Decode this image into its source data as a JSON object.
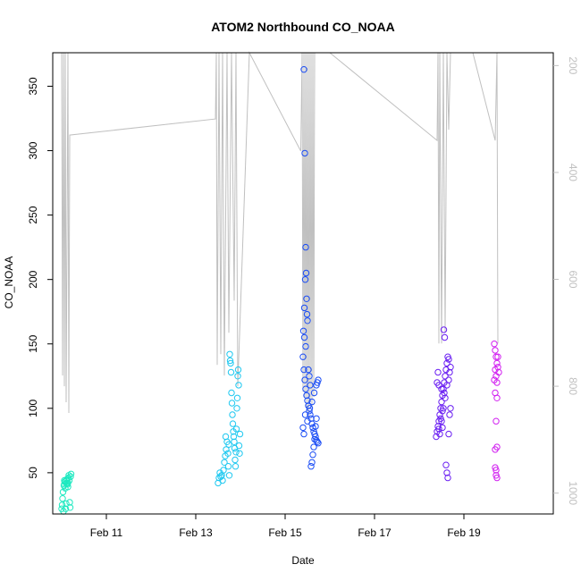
{
  "chart_data": {
    "type": "scatter",
    "title": "ATOM2 Northbound CO_NOAA",
    "xlabel": "Date",
    "ylabel": "CO_NOAA",
    "xlim_days": [
      9.8,
      21.0
    ],
    "ylim": [
      18,
      376
    ],
    "x_ticks": [
      {
        "label": "Feb 11",
        "value": 11
      },
      {
        "label": "Feb 13",
        "value": 13
      },
      {
        "label": "Feb 15",
        "value": 15
      },
      {
        "label": "Feb 17",
        "value": 17
      },
      {
        "label": "Feb 19",
        "value": 19
      }
    ],
    "y_ticks": [
      50,
      100,
      150,
      200,
      250,
      300,
      350
    ],
    "right_axis": {
      "ylim": [
        1039,
        176
      ],
      "ticks": [
        200,
        400,
        600,
        800,
        1000
      ],
      "color": "#c0c0c0"
    },
    "grid": false,
    "marker": "open-circle",
    "series": [
      {
        "color": "#1de9c0",
        "points": [
          [
            10.0,
            22
          ],
          [
            10.01,
            25
          ],
          [
            10.02,
            30
          ],
          [
            10.03,
            35
          ],
          [
            10.04,
            20
          ],
          [
            10.05,
            40
          ],
          [
            10.06,
            44
          ],
          [
            10.07,
            43
          ],
          [
            10.08,
            38
          ],
          [
            10.09,
            22
          ],
          [
            10.1,
            26
          ],
          [
            10.11,
            42
          ],
          [
            10.12,
            45
          ],
          [
            10.13,
            41
          ],
          [
            10.14,
            39
          ],
          [
            10.15,
            46
          ],
          [
            10.16,
            48
          ],
          [
            10.17,
            44
          ],
          [
            10.18,
            27
          ],
          [
            10.19,
            23
          ],
          [
            10.2,
            47
          ],
          [
            10.21,
            49
          ],
          [
            10.06,
            41
          ],
          [
            10.1,
            44
          ],
          [
            10.14,
            42
          ]
        ]
      },
      {
        "color": "#1ec8f0",
        "points": [
          [
            13.5,
            42
          ],
          [
            13.52,
            46
          ],
          [
            13.54,
            50
          ],
          [
            13.56,
            47
          ],
          [
            13.58,
            48
          ],
          [
            13.6,
            44
          ],
          [
            13.62,
            52
          ],
          [
            13.64,
            58
          ],
          [
            13.66,
            63
          ],
          [
            13.68,
            68
          ],
          [
            13.7,
            74
          ],
          [
            13.72,
            65
          ],
          [
            13.74,
            72
          ],
          [
            13.76,
            142
          ],
          [
            13.77,
            137
          ],
          [
            13.78,
            135
          ],
          [
            13.79,
            128
          ],
          [
            13.8,
            112
          ],
          [
            13.81,
            104
          ],
          [
            13.82,
            95
          ],
          [
            13.83,
            88
          ],
          [
            13.84,
            82
          ],
          [
            13.85,
            78
          ],
          [
            13.86,
            74
          ],
          [
            13.87,
            69
          ],
          [
            13.88,
            60
          ],
          [
            13.89,
            55
          ],
          [
            13.9,
            66
          ],
          [
            13.91,
            84
          ],
          [
            13.92,
            100
          ],
          [
            13.93,
            108
          ],
          [
            13.94,
            125
          ],
          [
            13.95,
            130
          ],
          [
            13.96,
            118
          ],
          [
            13.97,
            71
          ],
          [
            13.98,
            65
          ],
          [
            13.99,
            80
          ],
          [
            13.73,
            55
          ],
          [
            13.75,
            48
          ],
          [
            13.67,
            78
          ]
        ]
      },
      {
        "color": "#1a4cf5",
        "points": [
          [
            15.42,
            363
          ],
          [
            15.44,
            298
          ],
          [
            15.46,
            225
          ],
          [
            15.47,
            205
          ],
          [
            15.45,
            200
          ],
          [
            15.43,
            178
          ],
          [
            15.48,
            185
          ],
          [
            15.49,
            173
          ],
          [
            15.5,
            168
          ],
          [
            15.41,
            160
          ],
          [
            15.43,
            155
          ],
          [
            15.46,
            148
          ],
          [
            15.4,
            140
          ],
          [
            15.42,
            130
          ],
          [
            15.44,
            122
          ],
          [
            15.46,
            115
          ],
          [
            15.48,
            110
          ],
          [
            15.5,
            106
          ],
          [
            15.52,
            102
          ],
          [
            15.54,
            98
          ],
          [
            15.56,
            95
          ],
          [
            15.58,
            92
          ],
          [
            15.6,
            88
          ],
          [
            15.62,
            85
          ],
          [
            15.64,
            82
          ],
          [
            15.66,
            80
          ],
          [
            15.68,
            78
          ],
          [
            15.7,
            75
          ],
          [
            15.72,
            74
          ],
          [
            15.74,
            73
          ],
          [
            15.4,
            85
          ],
          [
            15.42,
            80
          ],
          [
            15.45,
            95
          ],
          [
            15.5,
            90
          ],
          [
            15.55,
            100
          ],
          [
            15.6,
            105
          ],
          [
            15.65,
            112
          ],
          [
            15.7,
            118
          ],
          [
            15.72,
            120
          ],
          [
            15.74,
            122
          ],
          [
            15.58,
            55
          ],
          [
            15.6,
            58
          ],
          [
            15.62,
            64
          ],
          [
            15.64,
            70
          ],
          [
            15.66,
            76
          ],
          [
            15.68,
            86
          ],
          [
            15.7,
            92
          ],
          [
            15.52,
            130
          ],
          [
            15.54,
            125
          ],
          [
            15.56,
            118
          ]
        ]
      },
      {
        "color": "#6a1ef2",
        "points": [
          [
            18.38,
            78
          ],
          [
            18.4,
            82
          ],
          [
            18.42,
            86
          ],
          [
            18.44,
            90
          ],
          [
            18.46,
            95
          ],
          [
            18.48,
            100
          ],
          [
            18.5,
            105
          ],
          [
            18.52,
            110
          ],
          [
            18.54,
            115
          ],
          [
            18.56,
            120
          ],
          [
            18.58,
            125
          ],
          [
            18.6,
            130
          ],
          [
            18.62,
            135
          ],
          [
            18.64,
            140
          ],
          [
            18.66,
            138
          ],
          [
            18.55,
            161
          ],
          [
            18.57,
            155
          ],
          [
            18.6,
            56
          ],
          [
            18.62,
            50
          ],
          [
            18.64,
            46
          ],
          [
            18.66,
            80
          ],
          [
            18.68,
            95
          ],
          [
            18.7,
            100
          ],
          [
            18.4,
            120
          ],
          [
            18.42,
            128
          ],
          [
            18.44,
            118
          ],
          [
            18.5,
            90
          ],
          [
            18.52,
            85
          ],
          [
            18.54,
            100
          ],
          [
            18.56,
            112
          ],
          [
            18.58,
            108
          ],
          [
            18.62,
            118
          ],
          [
            18.66,
            122
          ],
          [
            18.68,
            128
          ],
          [
            18.7,
            132
          ],
          [
            18.44,
            84
          ],
          [
            18.46,
            80
          ],
          [
            18.48,
            92
          ],
          [
            18.5,
            115
          ],
          [
            18.52,
            98
          ]
        ]
      },
      {
        "color": "#d11ef0",
        "points": [
          [
            19.68,
            150
          ],
          [
            19.7,
            145
          ],
          [
            19.72,
            140
          ],
          [
            19.74,
            135
          ],
          [
            19.7,
            130
          ],
          [
            19.72,
            125
          ],
          [
            19.74,
            120
          ],
          [
            19.7,
            112
          ],
          [
            19.72,
            90
          ],
          [
            19.74,
            70
          ],
          [
            19.7,
            54
          ],
          [
            19.72,
            48
          ],
          [
            19.74,
            46
          ],
          [
            19.76,
            140
          ],
          [
            19.78,
            128
          ],
          [
            19.68,
            122
          ],
          [
            19.7,
            68
          ],
          [
            19.72,
            52
          ],
          [
            19.76,
            132
          ],
          [
            19.74,
            108
          ]
        ]
      }
    ],
    "altitude_trace": {
      "color": "#c0c0c0",
      "note": "pressure profile on right axis",
      "path": [
        [
          10.0,
          176
        ],
        [
          10.02,
          780
        ],
        [
          10.04,
          176
        ],
        [
          10.06,
          800
        ],
        [
          10.08,
          176
        ],
        [
          10.1,
          830
        ],
        [
          10.14,
          176
        ],
        [
          10.16,
          850
        ],
        [
          10.18,
          330
        ],
        [
          13.44,
          300
        ],
        [
          13.46,
          176
        ],
        [
          13.48,
          760
        ],
        [
          13.52,
          176
        ],
        [
          13.56,
          740
        ],
        [
          13.6,
          176
        ],
        [
          13.64,
          780
        ],
        [
          13.7,
          176
        ],
        [
          13.74,
          700
        ],
        [
          13.8,
          176
        ],
        [
          13.86,
          640
        ],
        [
          13.9,
          176
        ],
        [
          13.94,
          800
        ],
        [
          14.2,
          176
        ],
        [
          15.35,
          360
        ],
        [
          15.38,
          176
        ],
        [
          15.4,
          810
        ],
        [
          15.42,
          176
        ],
        [
          15.44,
          820
        ],
        [
          15.46,
          176
        ],
        [
          15.48,
          840
        ],
        [
          15.5,
          176
        ],
        [
          15.52,
          860
        ],
        [
          15.54,
          176
        ],
        [
          15.56,
          830
        ],
        [
          15.58,
          176
        ],
        [
          15.6,
          840
        ],
        [
          15.62,
          176
        ],
        [
          15.64,
          820
        ],
        [
          15.66,
          176
        ],
        [
          16.0,
          176
        ],
        [
          18.4,
          340
        ],
        [
          18.42,
          176
        ],
        [
          18.44,
          720
        ],
        [
          18.46,
          176
        ],
        [
          18.5,
          720
        ],
        [
          18.54,
          176
        ],
        [
          18.58,
          700
        ],
        [
          18.62,
          176
        ],
        [
          18.66,
          320
        ],
        [
          18.7,
          176
        ],
        [
          19.2,
          176
        ],
        [
          19.7,
          340
        ],
        [
          19.74,
          176
        ],
        [
          19.76,
          720
        ]
      ]
    }
  }
}
